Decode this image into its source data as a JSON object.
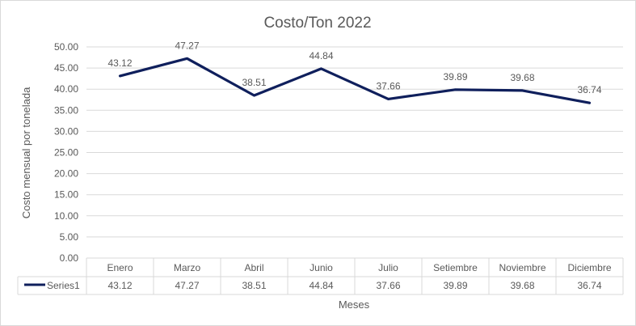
{
  "chart_data": {
    "type": "line",
    "title": "Costo/Ton 2022",
    "xlabel": "Meses",
    "ylabel": "Costo mensual por tonelada",
    "categories": [
      "Enero",
      "Marzo",
      "Abril",
      "Junio",
      "Julio",
      "Setiembre",
      "Noviembre",
      "Diciembre"
    ],
    "series": [
      {
        "name": "Series1",
        "values": [
          43.12,
          47.27,
          38.51,
          44.84,
          37.66,
          39.89,
          39.68,
          36.74
        ],
        "value_labels": [
          "43.12",
          "47.27",
          "38.51",
          "44.84",
          "37.66",
          "39.89",
          "39.68",
          "36.74"
        ],
        "color": "#0f1f5c"
      }
    ],
    "ylim": [
      0,
      50
    ],
    "yticks": [
      "0.00",
      "5.00",
      "10.00",
      "15.00",
      "20.00",
      "25.00",
      "30.00",
      "35.00",
      "40.00",
      "45.00",
      "50.00"
    ],
    "grid": true,
    "data_table": true,
    "legend": "data-table"
  },
  "colors": {
    "gridline": "#d9d9d9",
    "text": "#595959",
    "series": "#0f1f5c"
  }
}
